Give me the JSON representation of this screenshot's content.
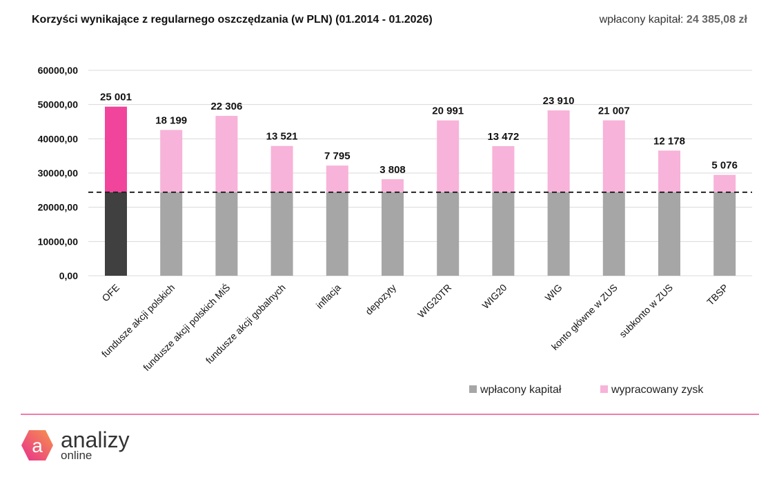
{
  "chart_data": {
    "type": "bar",
    "stacked": true,
    "title": "Korzyści wynikające z regularnego oszczędzania (w PLN) (01.2014 - 01.2026)",
    "capital_label": "wpłacony kapitał:",
    "capital_value": "24 385,08 zł",
    "capital": 24385.08,
    "categories": [
      "OFE",
      "fundusze akcji polskich",
      "fundusze akcji polskich MiŚ",
      "fundusze akcji gobalnych",
      "inflacja",
      "depozyty",
      "WIG20TR",
      "WIG20",
      "WIG",
      "konto główne w ZUS",
      "subkonto w ZUS",
      "TBSP"
    ],
    "series": [
      {
        "name": "wpłacony kapitał",
        "values": [
          24385.08,
          24385.08,
          24385.08,
          24385.08,
          24385.08,
          24385.08,
          24385.08,
          24385.08,
          24385.08,
          24385.08,
          24385.08,
          24385.08
        ],
        "color": "#a6a6a6"
      },
      {
        "name": "wypracowany zysk",
        "values": [
          25001,
          18199,
          22306,
          13521,
          7795,
          3808,
          20991,
          13472,
          23910,
          21007,
          12178,
          5076
        ],
        "color": "#f7b3d9"
      }
    ],
    "data_labels": [
      "25 001",
      "18 199",
      "22 306",
      "13 521",
      "7 795",
      "3 808",
      "20 991",
      "13 472",
      "23 910",
      "21 007",
      "12 178",
      "5 076"
    ],
    "highlight": {
      "category": "OFE",
      "base_color": "#404040",
      "top_color": "#f0459a"
    },
    "yticks": [
      "0,00",
      "10000,00",
      "20000,00",
      "30000,00",
      "40000,00",
      "50000,00",
      "60000,00"
    ],
    "ylim": [
      0,
      60000
    ],
    "grid": true,
    "legend_position": "bottom-right",
    "reference_line": {
      "value": 24385.08,
      "style": "dashed"
    }
  },
  "brand": {
    "name": "analizy",
    "sub": "online",
    "icon_letter": "a"
  }
}
